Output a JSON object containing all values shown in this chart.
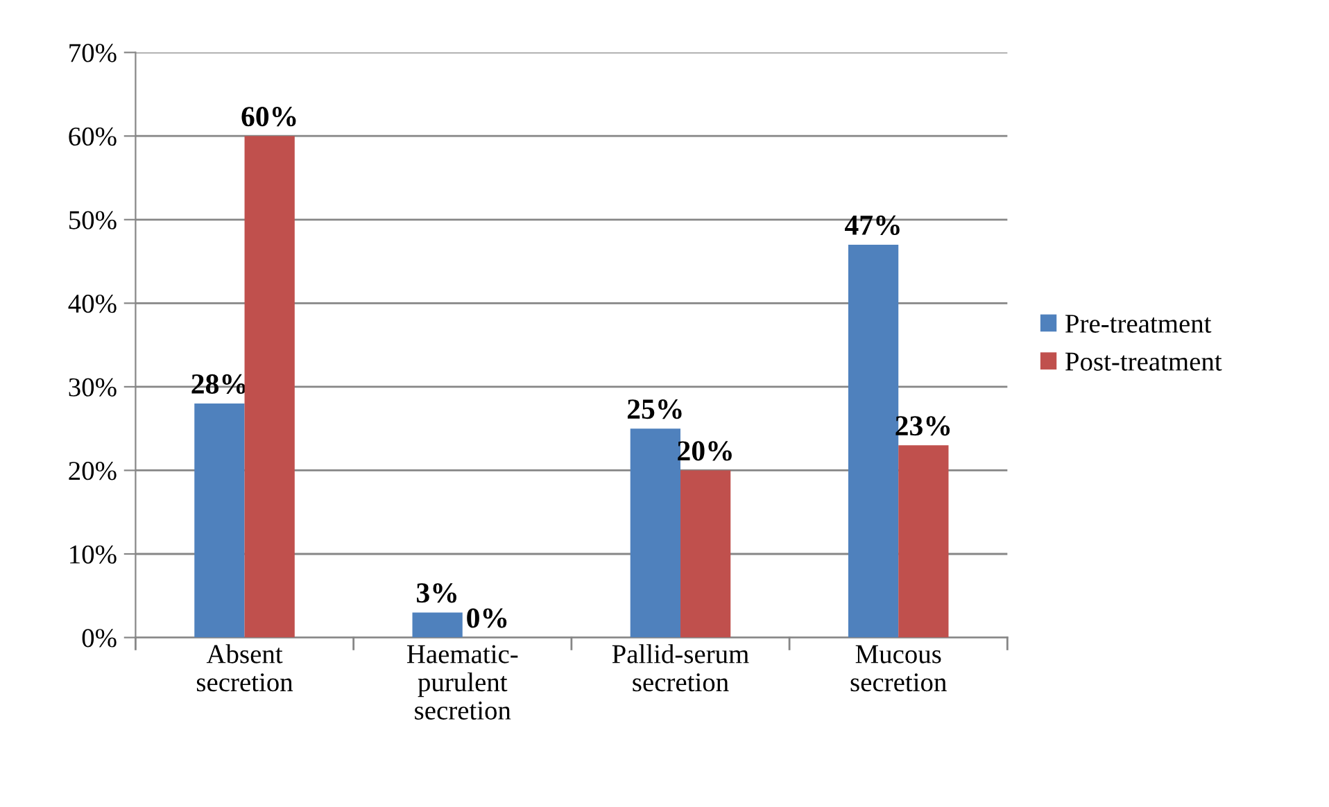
{
  "chart_data": {
    "type": "bar",
    "categories": [
      "Absent\nsecretion",
      "Haematic-\npurulent\nsecretion",
      "Pallid-serum\nsecretion",
      "Mucous\nsecretion"
    ],
    "series": [
      {
        "name": "Pre-treatment",
        "color": "#4f81bd",
        "values": [
          28,
          3,
          25,
          47
        ],
        "value_labels": [
          "28%",
          "3%",
          "25%",
          "47%"
        ]
      },
      {
        "name": "Post-treatment",
        "color": "#c0504d",
        "values": [
          60,
          0,
          20,
          23
        ],
        "value_labels": [
          "60%",
          "0%",
          "20%",
          "23%"
        ]
      }
    ],
    "ylim": [
      0,
      70
    ],
    "yticks": [
      {
        "value": 0,
        "label": "0%"
      },
      {
        "value": 10,
        "label": "10%"
      },
      {
        "value": 20,
        "label": "20%"
      },
      {
        "value": 30,
        "label": "30%"
      },
      {
        "value": 40,
        "label": "40%"
      },
      {
        "value": 50,
        "label": "50%"
      },
      {
        "value": 60,
        "label": "60%"
      },
      {
        "value": 70,
        "label": "70%"
      }
    ],
    "grid": "y",
    "legend": "right"
  }
}
